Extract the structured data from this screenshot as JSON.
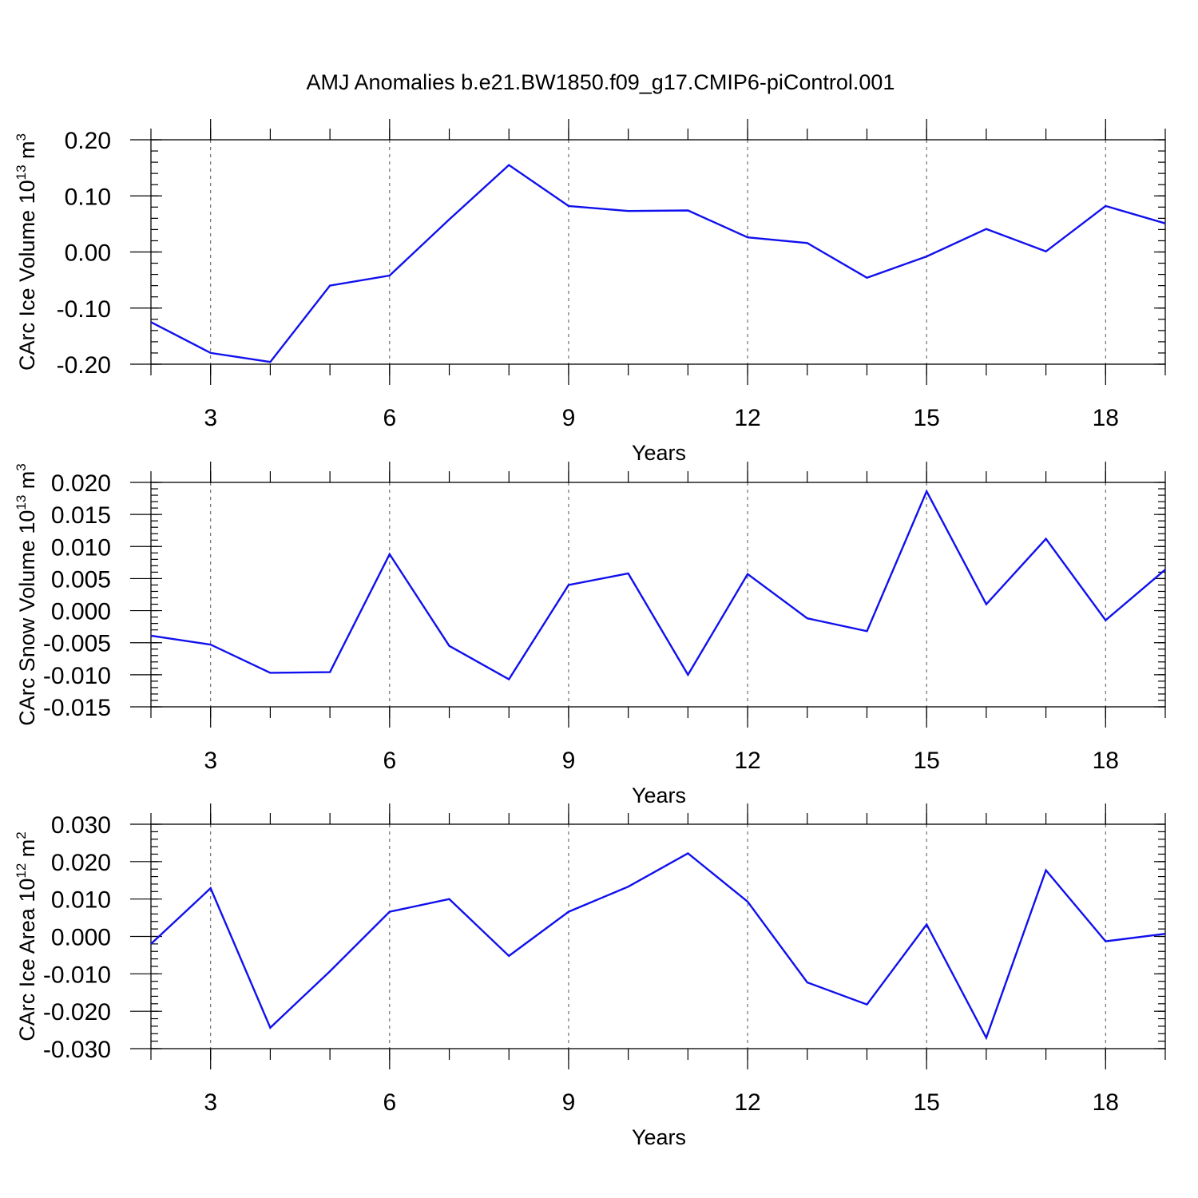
{
  "figure": {
    "title": "AMJ Anomalies b.e21.BW1850.f09_g17.CMIP6-piControl.001"
  },
  "chart_data": [
    {
      "type": "line",
      "xlabel": "Years",
      "ylabel": "CArc Ice Volume 10^13 m^3",
      "ylabel_main": "CArc Ice Volume 10",
      "ylabel_exp": "13",
      "ylabel_unit": " m",
      "ylabel_unit_exp": "3",
      "xlim": [
        2,
        19
      ],
      "ylim": [
        -0.2,
        0.2
      ],
      "xticks": [
        3,
        6,
        9,
        12,
        15,
        18
      ],
      "xtick_labels": [
        "3",
        "6",
        "9",
        "12",
        "15",
        "18"
      ],
      "yticks": [
        -0.2,
        -0.1,
        0.0,
        0.1,
        0.2
      ],
      "ytick_labels": [
        "-0.20",
        "-0.10",
        "0.00",
        "0.10",
        "0.20"
      ],
      "x_minor_step": 1,
      "y_minor_step": 0.02,
      "grid": "vertical-dashed-at-major-x",
      "color": "#1010ee",
      "x": [
        2,
        3,
        4,
        5,
        6,
        7,
        8,
        9,
        10,
        11,
        12,
        13,
        14,
        15,
        16,
        17,
        18,
        19
      ],
      "values": [
        -0.125,
        -0.18,
        -0.196,
        -0.06,
        -0.042,
        0.058,
        0.155,
        0.082,
        0.073,
        0.074,
        0.026,
        0.016,
        -0.046,
        -0.008,
        0.041,
        0.001,
        0.082,
        0.051
      ]
    },
    {
      "type": "line",
      "xlabel": "Years",
      "ylabel": "CArc Snow Volume 10^13 m^3",
      "ylabel_main": "CArc Snow Volume 10",
      "ylabel_exp": "13",
      "ylabel_unit": " m",
      "ylabel_unit_exp": "3",
      "xlim": [
        2,
        19
      ],
      "ylim": [
        -0.015,
        0.02
      ],
      "xticks": [
        3,
        6,
        9,
        12,
        15,
        18
      ],
      "xtick_labels": [
        "3",
        "6",
        "9",
        "12",
        "15",
        "18"
      ],
      "yticks": [
        -0.015,
        -0.01,
        -0.005,
        0.0,
        0.005,
        0.01,
        0.015,
        0.02
      ],
      "ytick_labels": [
        "-0.015",
        "-0.010",
        "-0.005",
        "0.000",
        "0.005",
        "0.010",
        "0.015",
        "0.020"
      ],
      "x_minor_step": 1,
      "y_minor_step": 0.001,
      "grid": "vertical-dashed-at-major-x",
      "color": "#1010ee",
      "x": [
        2,
        3,
        4,
        5,
        6,
        7,
        8,
        9,
        10,
        11,
        12,
        13,
        14,
        15,
        16,
        17,
        18,
        19
      ],
      "values": [
        -0.0039,
        -0.0053,
        -0.0097,
        -0.0096,
        0.0088,
        -0.0055,
        -0.0107,
        0.004,
        0.0058,
        -0.01,
        0.0057,
        -0.0012,
        -0.0032,
        0.0186,
        0.001,
        0.0112,
        -0.0015,
        0.0064
      ]
    },
    {
      "type": "line",
      "xlabel": "Years",
      "ylabel": "CArc Ice Area 10^12 m^2",
      "ylabel_main": "CArc Ice Area 10",
      "ylabel_exp": "12",
      "ylabel_unit": " m",
      "ylabel_unit_exp": "2",
      "xlim": [
        2,
        19
      ],
      "ylim": [
        -0.03,
        0.03
      ],
      "xticks": [
        3,
        6,
        9,
        12,
        15,
        18
      ],
      "xtick_labels": [
        "3",
        "6",
        "9",
        "12",
        "15",
        "18"
      ],
      "yticks": [
        -0.03,
        -0.02,
        -0.01,
        0.0,
        0.01,
        0.02,
        0.03
      ],
      "ytick_labels": [
        "-0.030",
        "-0.020",
        "-0.010",
        "0.000",
        "0.010",
        "0.020",
        "0.030"
      ],
      "x_minor_step": 1,
      "y_minor_step": 0.002,
      "grid": "vertical-dashed-at-major-x",
      "color": "#1010ee",
      "x": [
        2,
        3,
        4,
        5,
        6,
        7,
        8,
        9,
        10,
        11,
        12,
        13,
        14,
        15,
        16,
        17,
        18,
        19
      ],
      "values": [
        -0.002,
        0.0129,
        -0.0244,
        -0.0093,
        0.0066,
        0.01,
        -0.0052,
        0.0066,
        0.0133,
        0.0222,
        0.0093,
        -0.0123,
        -0.0182,
        0.0032,
        -0.0271,
        0.0177,
        -0.0013,
        0.0007
      ]
    }
  ]
}
